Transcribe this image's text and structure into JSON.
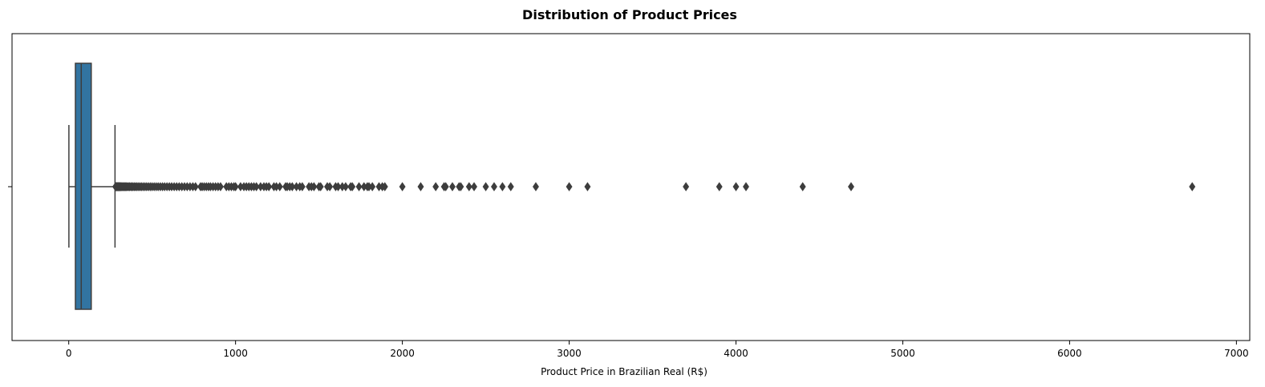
{
  "chart_data": {
    "type": "boxplot",
    "orientation": "horizontal",
    "title": "Distribution of Product Prices",
    "xlabel": "Product Price in Brazilian Real (R$)",
    "ylabel": "",
    "xlim": [
      -340,
      7080
    ],
    "xticks": [
      0,
      1000,
      2000,
      3000,
      4000,
      5000,
      6000,
      7000
    ],
    "xtick_labels": [
      "0",
      "1000",
      "2000",
      "3000",
      "4000",
      "5000",
      "6000",
      "7000"
    ],
    "grid": false,
    "legend": "none",
    "box": {
      "whisker_low": 0.85,
      "q1": 39.9,
      "median": 74.9,
      "q3": 134.9,
      "whisker_high": 277.3,
      "fill_color": "#3274a1",
      "line_color": "#3d3d3d"
    },
    "outliers": [
      280,
      282,
      285,
      288,
      290,
      293,
      296,
      299,
      302,
      305,
      308,
      312,
      316,
      320,
      325,
      330,
      335,
      340,
      346,
      352,
      358,
      365,
      372,
      379,
      386,
      394,
      402,
      410,
      419,
      428,
      437,
      447,
      457,
      467,
      478,
      489,
      500,
      512,
      524,
      536,
      549,
      562,
      575,
      589,
      603,
      617,
      632,
      647,
      662,
      678,
      694,
      710,
      727,
      744,
      760,
      790,
      800,
      812,
      825,
      838,
      850,
      865,
      880,
      895,
      910,
      945,
      960,
      975,
      990,
      1000,
      1030,
      1050,
      1065,
      1080,
      1095,
      1110,
      1125,
      1150,
      1170,
      1185,
      1200,
      1230,
      1245,
      1265,
      1300,
      1310,
      1325,
      1340,
      1365,
      1385,
      1400,
      1440,
      1455,
      1470,
      1500,
      1510,
      1550,
      1565,
      1600,
      1615,
      1640,
      1660,
      1690,
      1700,
      1740,
      1770,
      1790,
      1800,
      1820,
      1860,
      1880,
      1895,
      2000,
      2110,
      2200,
      2250,
      2260,
      2300,
      2340,
      2350,
      2400,
      2430,
      2500,
      2550,
      2600,
      2650,
      2800,
      3000,
      3110,
      3700,
      3900,
      4000,
      4060,
      4400,
      4690,
      6735
    ]
  }
}
